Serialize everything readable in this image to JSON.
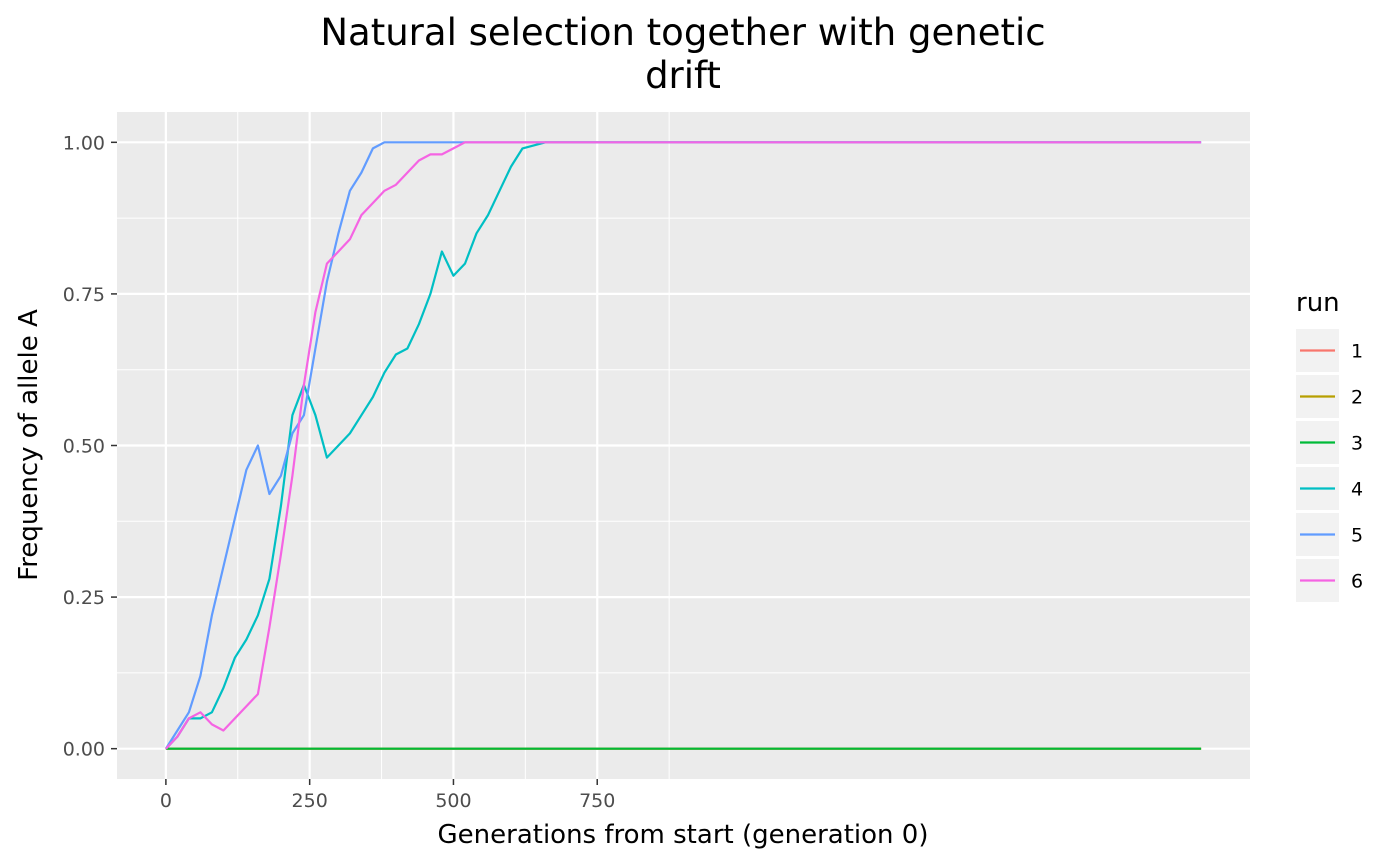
{
  "chart_data": {
    "type": "line",
    "title_lines": [
      "Natural selection together with genetic",
      "drift"
    ],
    "xlabel": "Generations from start (generation 0)",
    "ylabel": "Frequency of allele A",
    "xlim": [
      -85,
      1885
    ],
    "ylim": [
      -0.05,
      1.05
    ],
    "x_ticks": [
      0,
      250,
      500,
      750
    ],
    "y_ticks": [
      0.0,
      0.25,
      0.5,
      0.75,
      1.0
    ],
    "x_tick_labels": [
      "0",
      "250",
      "500",
      "750"
    ],
    "y_tick_labels": [
      "0.00",
      "0.25",
      "0.50",
      "0.75",
      "1.00"
    ],
    "grid": true,
    "background": "#ebebeb",
    "legend": {
      "title": "run",
      "position": "right"
    },
    "series": [
      {
        "name": "1",
        "color": "#F8766D",
        "x": [
          0,
          1800
        ],
        "y": [
          0,
          0
        ]
      },
      {
        "name": "2",
        "color": "#B79F00",
        "x": [
          0,
          1800
        ],
        "y": [
          0,
          0
        ]
      },
      {
        "name": "3",
        "color": "#00BA38",
        "x": [
          0,
          1800
        ],
        "y": [
          0,
          0
        ]
      },
      {
        "name": "4",
        "color": "#00BFC4",
        "x": [
          0,
          20,
          40,
          60,
          80,
          100,
          120,
          140,
          160,
          180,
          200,
          220,
          240,
          260,
          280,
          300,
          320,
          340,
          360,
          380,
          400,
          420,
          440,
          460,
          480,
          500,
          520,
          540,
          560,
          580,
          600,
          620,
          660,
          700,
          800,
          1000,
          1200,
          1400,
          1600,
          1800
        ],
        "y": [
          0,
          0.02,
          0.05,
          0.05,
          0.06,
          0.1,
          0.15,
          0.18,
          0.22,
          0.28,
          0.4,
          0.55,
          0.6,
          0.55,
          0.48,
          0.5,
          0.52,
          0.55,
          0.58,
          0.62,
          0.65,
          0.66,
          0.7,
          0.75,
          0.82,
          0.78,
          0.8,
          0.85,
          0.88,
          0.92,
          0.96,
          0.99,
          1.0,
          1.0,
          1.0,
          1.0,
          1.0,
          1.0,
          1.0,
          1.0
        ]
      },
      {
        "name": "5",
        "color": "#619CFF",
        "x": [
          0,
          20,
          40,
          60,
          80,
          100,
          120,
          140,
          160,
          180,
          200,
          220,
          240,
          260,
          280,
          300,
          320,
          340,
          360,
          380,
          400,
          500,
          600,
          800,
          1000,
          1200,
          1400,
          1600,
          1800
        ],
        "y": [
          0,
          0.03,
          0.06,
          0.12,
          0.22,
          0.3,
          0.38,
          0.46,
          0.5,
          0.42,
          0.45,
          0.52,
          0.55,
          0.66,
          0.77,
          0.85,
          0.92,
          0.95,
          0.99,
          1.0,
          1.0,
          1.0,
          1.0,
          1.0,
          1.0,
          1.0,
          1.0,
          1.0,
          1.0
        ]
      },
      {
        "name": "6",
        "color": "#F564E3",
        "x": [
          0,
          20,
          40,
          60,
          80,
          100,
          120,
          140,
          160,
          180,
          200,
          220,
          240,
          260,
          280,
          300,
          320,
          340,
          360,
          380,
          400,
          420,
          440,
          460,
          480,
          500,
          520,
          540,
          600,
          800,
          1000,
          1200,
          1400,
          1600,
          1800
        ],
        "y": [
          0,
          0.02,
          0.05,
          0.06,
          0.04,
          0.03,
          0.05,
          0.07,
          0.09,
          0.2,
          0.32,
          0.45,
          0.6,
          0.72,
          0.8,
          0.82,
          0.84,
          0.88,
          0.9,
          0.92,
          0.93,
          0.95,
          0.97,
          0.98,
          0.98,
          0.99,
          1.0,
          1.0,
          1.0,
          1.0,
          1.0,
          1.0,
          1.0,
          1.0,
          1.0
        ]
      }
    ]
  }
}
